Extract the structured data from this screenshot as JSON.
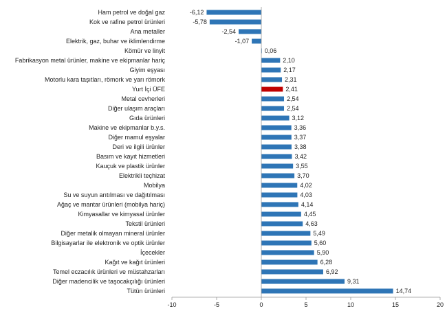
{
  "chart_data": {
    "type": "bar",
    "orientation": "horizontal",
    "categories": [
      "Ham petrol ve doğal gaz",
      "Kok ve rafine petrol ürünleri",
      "Ana metaller",
      "Elektrik, gaz, buhar ve iklimlendirme",
      "Kömür ve linyit",
      "Fabrikasyon metal ürünler, makine ve ekipmanlar hariç",
      "Giyim eşyası",
      "Motorlu kara taşıtları, römork ve yarı römork",
      "Yurt İçi ÜFE",
      "Metal cevherleri",
      "Diğer ulaşım araçları",
      "Gıda ürünleri",
      "Makine ve ekipmanlar b.y.s.",
      "Diğer mamul eşyalar",
      "Deri ve ilgili ürünler",
      "Basım ve kayıt hizmetleri",
      "Kauçuk ve plastik ürünler",
      "Elektrikli teçhizat",
      "Mobilya",
      "Su ve suyun arıtılması ve dağıtılması",
      "Ağaç ve mantar ürünleri (mobilya hariç)",
      "Kimyasallar ve kimyasal ürünler",
      "Tekstil ürünleri",
      "Diğer metalik olmayan mineral ürünler",
      "Bilgisayarlar ile elektronik ve optik ürünler",
      "İçecekler",
      "Kağıt ve kağıt ürünleri",
      "Temel eczacılık ürünleri ve müstahzarları",
      "Diğer madencilik ve taşocakçılığı ürünleri",
      "Tütün ürünleri"
    ],
    "values": [
      -6.12,
      -5.78,
      -2.54,
      -1.07,
      0.06,
      2.1,
      2.17,
      2.31,
      2.41,
      2.54,
      2.54,
      3.12,
      3.36,
      3.37,
      3.38,
      3.42,
      3.55,
      3.7,
      4.02,
      4.03,
      4.14,
      4.45,
      4.63,
      5.49,
      5.6,
      5.9,
      6.28,
      6.92,
      9.31,
      14.74
    ],
    "value_labels": [
      "-6,12",
      "-5,78",
      "-2,54",
      "-1,07",
      "0,06",
      "2,10",
      "2,17",
      "2,31",
      "2,41",
      "2,54",
      "2,54",
      "3,12",
      "3,36",
      "3,37",
      "3,38",
      "3,42",
      "3,55",
      "3,70",
      "4,02",
      "4,03",
      "4,14",
      "4,45",
      "4,63",
      "5,49",
      "5,60",
      "5,90",
      "6,28",
      "6,92",
      "9,31",
      "14,74"
    ],
    "highlight_category": "Yurt İçi ÜFE",
    "xlim": [
      -10,
      20
    ],
    "xticks": [
      "-10",
      "-5",
      "0",
      "5",
      "10",
      "15",
      "20"
    ],
    "grid": false,
    "colors": {
      "bar": "#2E75B6",
      "highlight": "#C00000"
    }
  }
}
